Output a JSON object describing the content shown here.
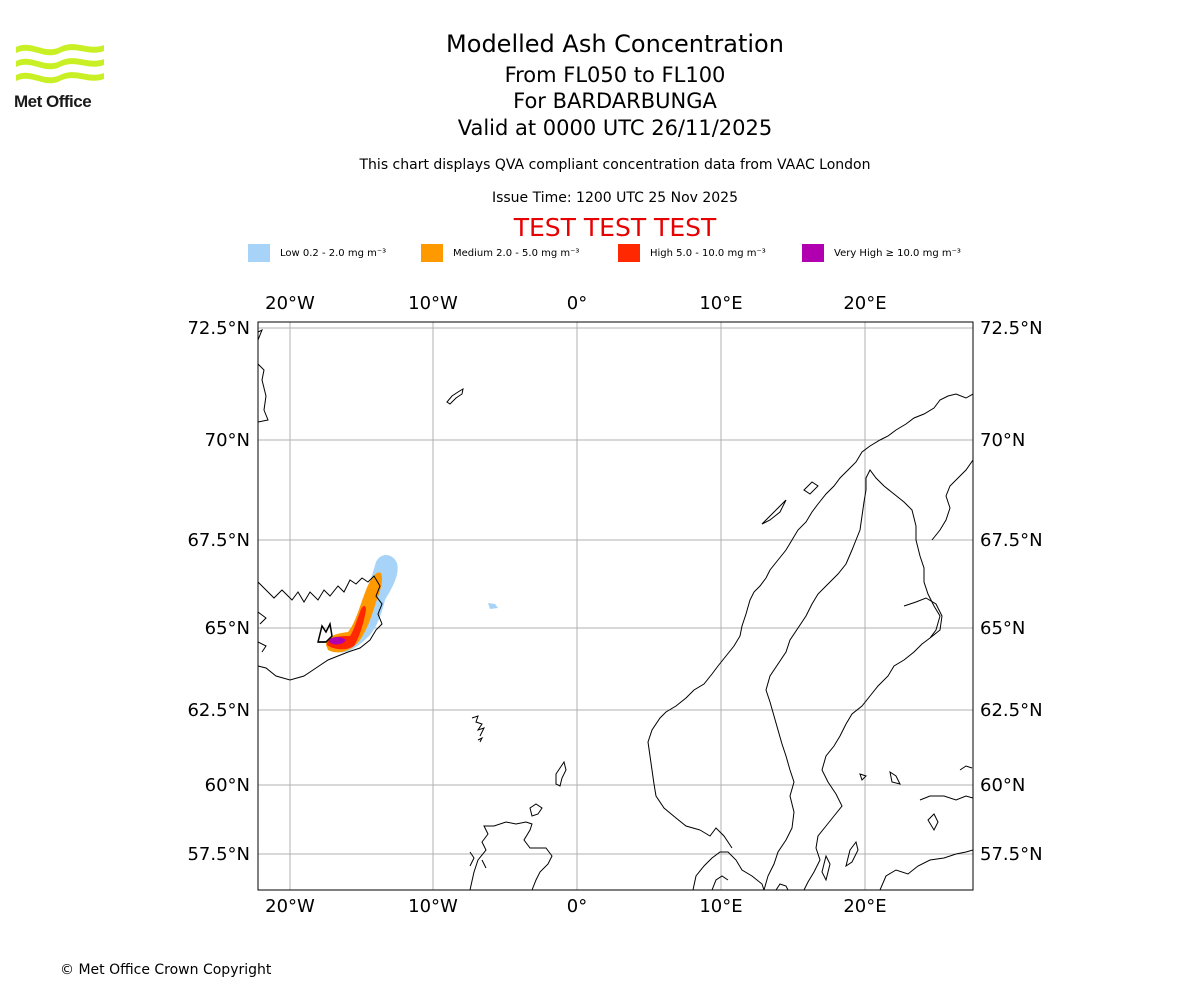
{
  "header": {
    "logo_text": "Met Office",
    "title": "Modelled Ash Concentration",
    "level_range": "From FL050 to FL100",
    "volcano": "For BARDARBUNGA",
    "valid_time": "Valid at 0000 UTC 26/11/2025",
    "description": "This chart displays QVA compliant concentration data from VAAC London",
    "issue_time": "Issue Time: 1200 UTC 25 Nov 2025",
    "test_banner": "TEST TEST TEST"
  },
  "legend": [
    {
      "label": "Low 0.2 - 2.0 mg m⁻³",
      "color": "#a6d3f7"
    },
    {
      "label": "Medium 2.0 - 5.0 mg m⁻³",
      "color": "#ff9900"
    },
    {
      "label": "High 5.0 - 10.0 mg m⁻³",
      "color": "#ff2800"
    },
    {
      "label": "Very High ≥ 10.0 mg m⁻³",
      "color": "#b000b0"
    }
  ],
  "map": {
    "lon_labels": [
      "20°W",
      "10°W",
      "0°",
      "10°E",
      "20°E"
    ],
    "lat_labels": [
      "72.5°N",
      "70°N",
      "67.5°N",
      "65°N",
      "62.5°N",
      "60°N",
      "57.5°N"
    ],
    "gridline_color": "#b0b0b0",
    "coast_color": "#000000"
  },
  "footer": {
    "copyright": "© Met Office Crown Copyright"
  }
}
